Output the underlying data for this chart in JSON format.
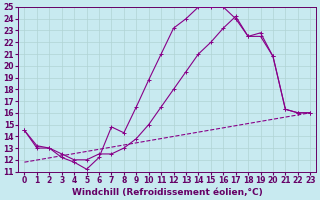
{
  "xlabel": "Windchill (Refroidissement éolien,°C)",
  "bg_color": "#c8eaf0",
  "grid_color": "#b0d4d4",
  "line_color": "#880088",
  "xlim": [
    -0.5,
    23.5
  ],
  "ylim": [
    11,
    25
  ],
  "xticks": [
    0,
    1,
    2,
    3,
    4,
    5,
    6,
    7,
    8,
    9,
    10,
    11,
    12,
    13,
    14,
    15,
    16,
    17,
    18,
    19,
    20,
    21,
    22,
    23
  ],
  "yticks": [
    11,
    12,
    13,
    14,
    15,
    16,
    17,
    18,
    19,
    20,
    21,
    22,
    23,
    24,
    25
  ],
  "line1_x": [
    0,
    1,
    2,
    3,
    4,
    5,
    6,
    7,
    8,
    9,
    10,
    11,
    12,
    13,
    14,
    15,
    16,
    17,
    18,
    19,
    20,
    21,
    22,
    23
  ],
  "line1_y": [
    14.5,
    13.0,
    13.0,
    12.2,
    11.8,
    11.2,
    12.2,
    14.8,
    14.3,
    16.5,
    18.8,
    21.0,
    23.2,
    24.0,
    25.0,
    25.0,
    25.0,
    24.0,
    22.5,
    22.8,
    20.8,
    16.3,
    16.0,
    16.0
  ],
  "line2_x": [
    0,
    1,
    2,
    3,
    4,
    5,
    6,
    7,
    8,
    9,
    10,
    11,
    12,
    13,
    14,
    15,
    16,
    17,
    18,
    19,
    20,
    21,
    22,
    23
  ],
  "line2_y": [
    14.5,
    13.2,
    13.0,
    12.5,
    12.0,
    12.0,
    12.5,
    12.5,
    13.0,
    13.8,
    15.0,
    16.5,
    18.0,
    19.5,
    21.0,
    22.0,
    23.2,
    24.2,
    22.5,
    22.5,
    20.8,
    16.3,
    16.0,
    16.0
  ],
  "line3_x": [
    0,
    23
  ],
  "line3_y": [
    11.8,
    16.0
  ],
  "tick_fontsize": 5.5,
  "label_fontsize": 6.5
}
